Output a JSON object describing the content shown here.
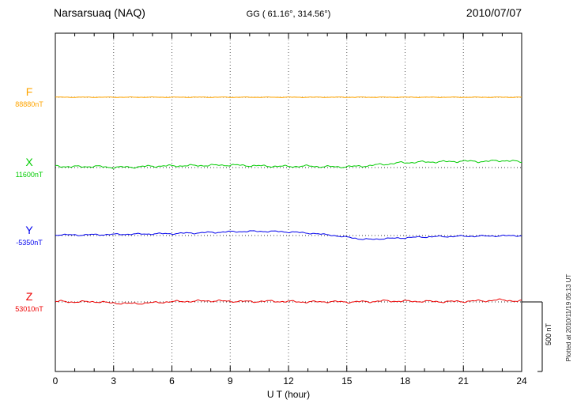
{
  "header": {
    "station": "Narsarsuaq (NAQ)",
    "coords": "GG ( 61.16°, 314.56°)",
    "date": "2010/07/07"
  },
  "axis": {
    "xlabel": "U T (hour)",
    "x_ticks": [
      "0",
      "3",
      "6",
      "9",
      "12",
      "15",
      "18",
      "21",
      "24"
    ]
  },
  "scale_bar": {
    "label": "500 nT",
    "nT": 500
  },
  "footer_note": "Plotted at 2010/11/19 05:13 UT",
  "chart_data": {
    "type": "line",
    "title": "Narsarsuaq (NAQ) magnetogram",
    "xlabel": "U T (hour)",
    "x_unit": "hour",
    "x_range": [
      0,
      24
    ],
    "sample_interval_hours": 1,
    "grid": "dotted vertical every 3 hours, dotted baseline per trace",
    "legend_position": "left of axis, one colored label per trace",
    "scale_bar_nT": 500,
    "series": [
      {
        "name": "F",
        "baseline_label": "88880nT",
        "baseline_nT": 88880,
        "color": "#FFA500",
        "offsets_nT": [
          0,
          0,
          0,
          0,
          0,
          0,
          0,
          0,
          0,
          0,
          0,
          0,
          0,
          0,
          0,
          0,
          0,
          0,
          0,
          0,
          0,
          0,
          0,
          0,
          0
        ]
      },
      {
        "name": "X",
        "baseline_label": "11600nT",
        "baseline_nT": 11600,
        "color": "#00CC00",
        "offsets_nT": [
          10,
          6,
          8,
          2,
          4,
          10,
          12,
          14,
          16,
          18,
          14,
          10,
          8,
          10,
          6,
          6,
          12,
          25,
          36,
          40,
          42,
          46,
          44,
          50,
          42
        ]
      },
      {
        "name": "Y",
        "baseline_label": "-5350nT",
        "baseline_nT": -5350,
        "color": "#0000EE",
        "offsets_nT": [
          6,
          4,
          6,
          8,
          10,
          12,
          14,
          18,
          22,
          27,
          30,
          30,
          26,
          18,
          6,
          -12,
          -28,
          -22,
          -16,
          -10,
          -7,
          -5,
          -4,
          -2,
          0
        ]
      },
      {
        "name": "Z",
        "baseline_label": "53010nT",
        "baseline_nT": 53010,
        "color": "#EE0000",
        "offsets_nT": [
          4,
          0,
          2,
          -8,
          -12,
          -6,
          2,
          5,
          8,
          5,
          3,
          5,
          3,
          0,
          2,
          0,
          2,
          7,
          5,
          4,
          2,
          4,
          8,
          14,
          4
        ]
      }
    ]
  }
}
